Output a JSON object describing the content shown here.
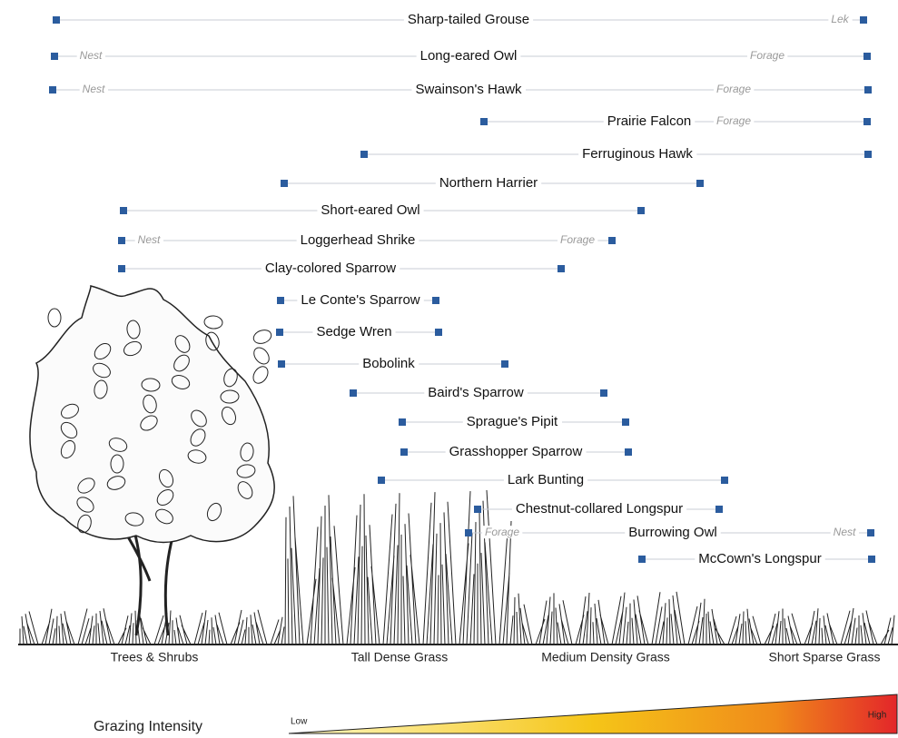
{
  "rows": [
    {
      "name": "Sharp-tailed Grouse",
      "right_note": "Lek"
    },
    {
      "name": "Long-eared Owl",
      "left_note": "Nest",
      "right_note": "Forage"
    },
    {
      "name": "Swainson's Hawk",
      "left_note": "Nest",
      "right_note": "Forage"
    },
    {
      "name": "Prairie Falcon",
      "right_note": "Forage"
    },
    {
      "name": "Ferruginous Hawk"
    },
    {
      "name": "Northern Harrier"
    },
    {
      "name": "Short-eared Owl"
    },
    {
      "name": "Loggerhead Shrike",
      "left_note": "Nest",
      "right_note": "Forage"
    },
    {
      "name": "Clay-colored Sparrow"
    },
    {
      "name": "Le Conte's Sparrow"
    },
    {
      "name": "Sedge Wren"
    },
    {
      "name": "Bobolink"
    },
    {
      "name": "Baird's Sparrow"
    },
    {
      "name": "Sprague's Pipit"
    },
    {
      "name": "Grasshopper Sparrow"
    },
    {
      "name": "Lark Bunting"
    },
    {
      "name": "Chestnut-collared Longspur"
    },
    {
      "name": "Burrowing Owl",
      "left_note": "Forage",
      "right_note": "Nest"
    },
    {
      "name": "McCown's Longspur"
    }
  ],
  "habitats": [
    "Trees & Shrubs",
    "Tall Dense Grass",
    "Medium Density Grass",
    "Short Sparse Grass"
  ],
  "gradient": {
    "title": "Grazing Intensity",
    "low": "Low",
    "high": "High"
  }
}
